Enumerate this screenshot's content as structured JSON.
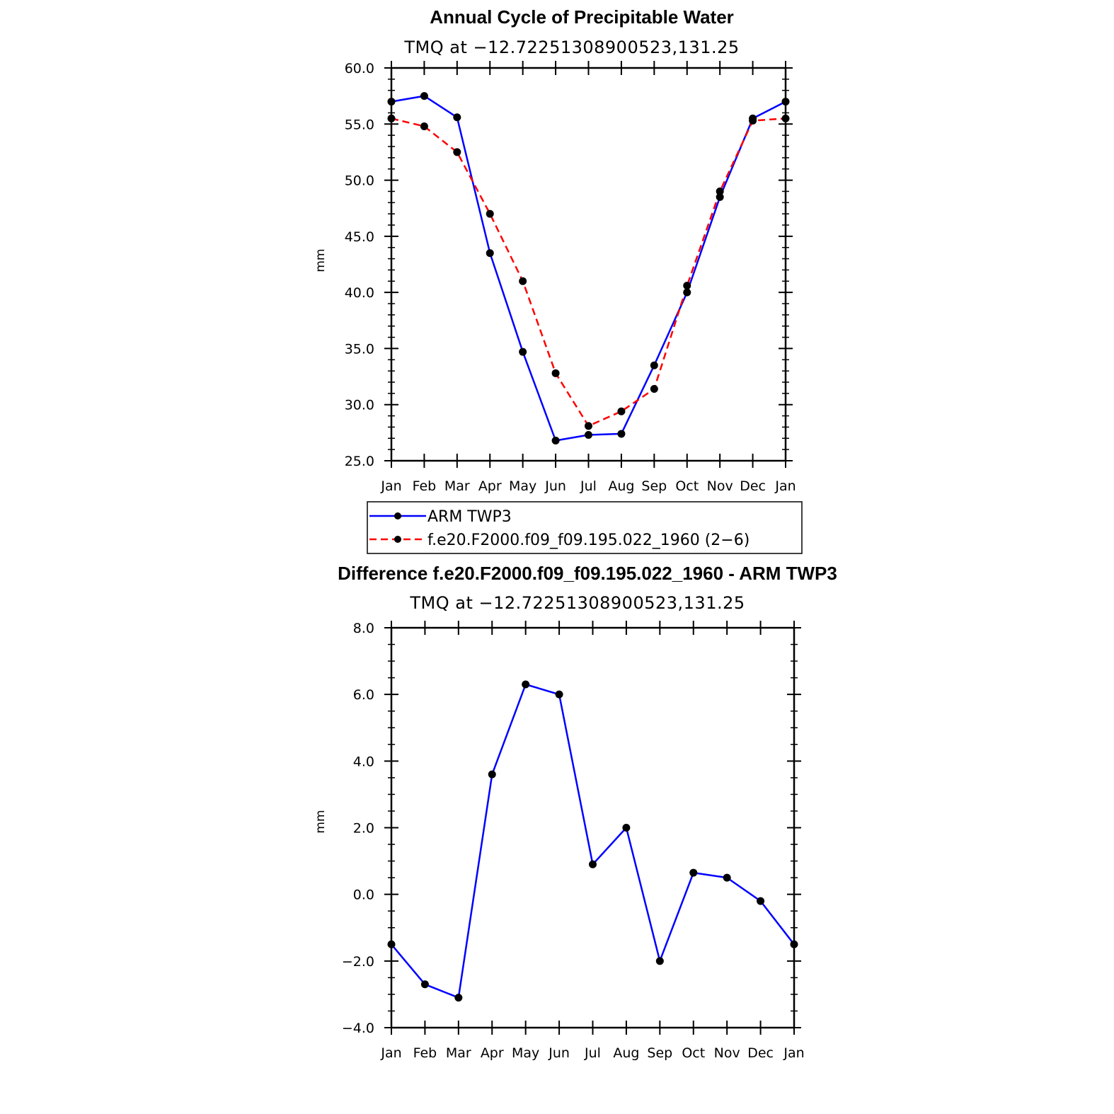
{
  "chart_data": [
    {
      "type": "line",
      "title": "Annual Cycle of Precipitable Water",
      "subtitle": "TMQ at −12.72251308900523,131.25",
      "xlabel": "",
      "ylabel": "mm",
      "categories": [
        "Jan",
        "Feb",
        "Mar",
        "Apr",
        "May",
        "Jun",
        "Jul",
        "Aug",
        "Sep",
        "Oct",
        "Nov",
        "Dec",
        "Jan"
      ],
      "ylim": [
        25.0,
        60.0
      ],
      "yticks": [
        "25.0",
        "30.0",
        "35.0",
        "40.0",
        "45.0",
        "50.0",
        "55.0",
        "60.0"
      ],
      "series": [
        {
          "name": "ARM TWP3",
          "color": "#0000ff",
          "dash": "solid",
          "values": [
            57.0,
            57.5,
            55.6,
            43.5,
            34.7,
            26.8,
            27.3,
            27.4,
            33.5,
            40.0,
            48.5,
            55.5,
            57.0
          ]
        },
        {
          "name": "f.e20.F2000.f09_f09.195.022_1960 (2−6)",
          "color": "#ff0000",
          "dash": "dashed",
          "values": [
            55.5,
            54.8,
            52.5,
            47.0,
            41.0,
            32.8,
            28.1,
            29.4,
            31.4,
            40.6,
            49.0,
            55.3,
            55.5
          ]
        }
      ],
      "legend": {
        "position": "bottom",
        "entries": [
          "ARM TWP3",
          "f.e20.F2000.f09_f09.195.022_1960 (2−6)"
        ]
      }
    },
    {
      "type": "line",
      "title": "Difference f.e20.F2000.f09_f09.195.022_1960 - ARM TWP3",
      "subtitle": "TMQ at −12.72251308900523,131.25",
      "xlabel": "",
      "ylabel": "mm",
      "categories": [
        "Jan",
        "Feb",
        "Mar",
        "Apr",
        "May",
        "Jun",
        "Jul",
        "Aug",
        "Sep",
        "Oct",
        "Nov",
        "Dec",
        "Jan"
      ],
      "ylim": [
        -4.0,
        8.0
      ],
      "yticks": [
        "−4.0",
        "−2.0",
        "0.0",
        "2.0",
        "4.0",
        "6.0",
        "8.0"
      ],
      "series": [
        {
          "name": "Difference",
          "color": "#0000ff",
          "dash": "solid",
          "values": [
            -1.5,
            -2.7,
            -3.1,
            3.6,
            6.3,
            6.0,
            0.9,
            2.0,
            -2.0,
            0.65,
            0.5,
            -0.2,
            -1.5
          ]
        }
      ]
    }
  ]
}
